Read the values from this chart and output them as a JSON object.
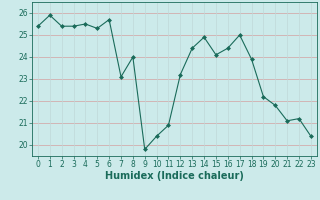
{
  "x": [
    0,
    1,
    2,
    3,
    4,
    5,
    6,
    7,
    8,
    9,
    10,
    11,
    12,
    13,
    14,
    15,
    16,
    17,
    18,
    19,
    20,
    21,
    22,
    23
  ],
  "y": [
    25.4,
    25.9,
    25.4,
    25.4,
    25.5,
    25.3,
    25.7,
    23.1,
    24.0,
    19.8,
    20.4,
    20.9,
    23.2,
    24.4,
    24.9,
    24.1,
    24.4,
    25.0,
    23.9,
    22.2,
    21.8,
    21.1,
    21.2,
    20.4
  ],
  "line_color": "#1a6b5a",
  "marker": "D",
  "marker_size": 2.0,
  "bg_color": "#cceaea",
  "grid_color_h": "#d4a0a0",
  "grid_color_v": "#c0d8d8",
  "xlabel": "Humidex (Indice chaleur)",
  "ylim": [
    19.5,
    26.5
  ],
  "xlim": [
    -0.5,
    23.5
  ],
  "yticks": [
    20,
    21,
    22,
    23,
    24,
    25,
    26
  ],
  "xticks": [
    0,
    1,
    2,
    3,
    4,
    5,
    6,
    7,
    8,
    9,
    10,
    11,
    12,
    13,
    14,
    15,
    16,
    17,
    18,
    19,
    20,
    21,
    22,
    23
  ],
  "tick_fontsize": 5.5,
  "xlabel_fontsize": 7.0
}
